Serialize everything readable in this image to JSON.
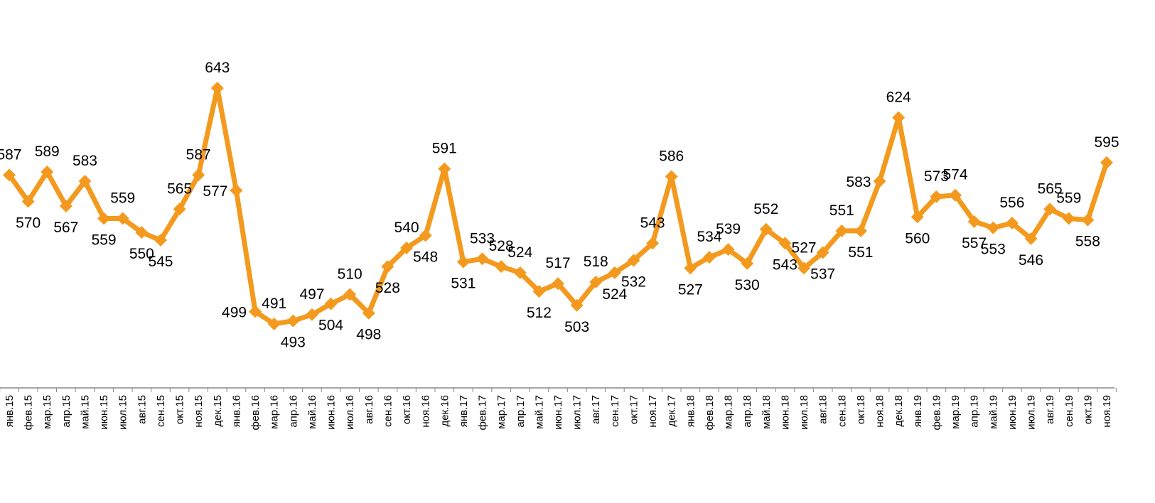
{
  "chart_data": {
    "type": "line",
    "title": "",
    "xlabel": "",
    "ylabel": "",
    "ylim": [
      400,
      660
    ],
    "grid": false,
    "legend": "none",
    "colors": {
      "line": "#F39A1E",
      "axis": "#888888",
      "text": "#000000"
    },
    "categories": [
      "янв.15",
      "фев.15",
      "мар.15",
      "апр.15",
      "май.15",
      "июн.15",
      "июл.15",
      "авг.15",
      "сен.15",
      "окт.15",
      "ноя.15",
      "дек.15",
      "янв.16",
      "фев.16",
      "мар.16",
      "апр.16",
      "май.16",
      "июн.16",
      "июл.16",
      "авг.16",
      "сен.16",
      "окт.16",
      "ноя.16",
      "дек.16",
      "янв.17",
      "фев.17",
      "мар.17",
      "апр.17",
      "май.17",
      "июн.17",
      "июл.17",
      "авг.17",
      "сен.17",
      "окт.17",
      "ноя.17",
      "дек.17",
      "янв.18",
      "фев.18",
      "мар.18",
      "апр.18",
      "май.18",
      "июн.18",
      "июл.18",
      "авг.18",
      "сен.18",
      "окт.18",
      "ноя.18",
      "дек.18",
      "янв.19",
      "фев.19",
      "мар.19",
      "апр.19",
      "май.19",
      "июн.19",
      "июл.19",
      "авг.19",
      "сен.19",
      "окт.19",
      "ноя.19"
    ],
    "series": [
      {
        "name": "",
        "values": [
          587,
          570,
          589,
          567,
          583,
          559,
          559,
          550,
          545,
          565,
          587,
          643,
          577,
          499,
          491,
          493,
          497,
          504,
          510,
          498,
          528,
          540,
          548,
          591,
          531,
          533,
          528,
          524,
          512,
          517,
          503,
          518,
          524,
          532,
          543,
          586,
          527,
          534,
          539,
          530,
          552,
          543,
          527,
          537,
          551,
          551,
          583,
          624,
          560,
          573,
          574,
          557,
          553,
          556,
          546,
          565,
          559,
          558,
          595
        ],
        "label_position": [
          "a",
          "b",
          "a",
          "b",
          "a",
          "b",
          "a",
          "b",
          "b",
          "a",
          "a",
          "a",
          "l",
          "l",
          "a",
          "b",
          "a",
          "b",
          "a",
          "b",
          "b",
          "a",
          "b",
          "a",
          "b",
          "a",
          "a",
          "a",
          "b",
          "a",
          "b",
          "a",
          "b",
          "b",
          "a",
          "a",
          "b",
          "a",
          "a",
          "b",
          "a",
          "b",
          "a",
          "b",
          "a",
          "b",
          "l",
          "a",
          "b",
          "a",
          "a",
          "b",
          "b",
          "a",
          "b",
          "a",
          "a",
          "b",
          "a"
        ]
      }
    ]
  }
}
